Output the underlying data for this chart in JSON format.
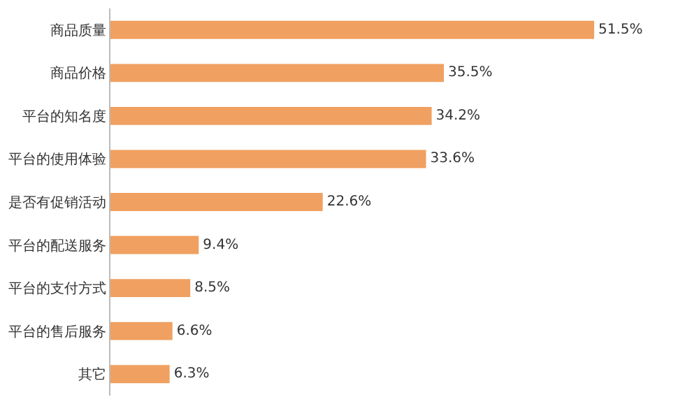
{
  "chart_data": {
    "type": "bar",
    "orientation": "horizontal",
    "categories": [
      "商品质量",
      "商品价格",
      "平台的知名度",
      "平台的使用体验",
      "是否有促销活动",
      "平台的配送服务",
      "平台的支付方式",
      "平台的售后服务",
      "其它"
    ],
    "values": [
      51.5,
      35.5,
      34.2,
      33.6,
      22.6,
      9.4,
      8.5,
      6.6,
      6.3
    ],
    "value_labels": [
      "51.5%",
      "35.5%",
      "34.2%",
      "33.6%",
      "22.6%",
      "9.4%",
      "8.5%",
      "6.6%",
      "6.3%"
    ],
    "color": "#f0a060"
  }
}
